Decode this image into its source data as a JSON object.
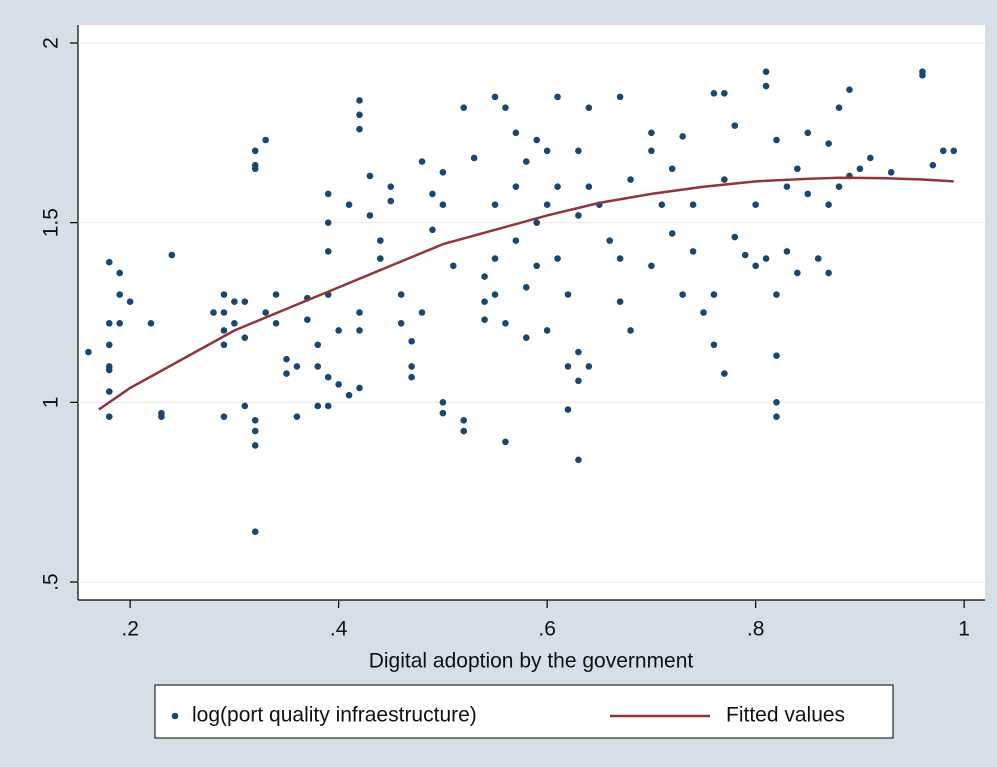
{
  "chart_data": {
    "type": "scatter",
    "x_label": "Digital adoption by the government",
    "xlim": [
      0.15,
      1.02
    ],
    "ylim": [
      0.45,
      2.05
    ],
    "xticks": [
      {
        "value": 0.2,
        "label": ".2"
      },
      {
        "value": 0.4,
        "label": ".4"
      },
      {
        "value": 0.6,
        "label": ".6"
      },
      {
        "value": 0.8,
        "label": ".8"
      },
      1
    ],
    "yticks": [
      {
        "value": 0.5,
        "label": ".5"
      },
      1,
      1.5,
      2
    ],
    "grid": true,
    "legend": "bottom",
    "series": [
      {
        "name": "log(port quality infraestructure)",
        "type": "scatter",
        "color": "#1a476f",
        "x": [
          0.16,
          0.18,
          0.18,
          0.18,
          0.18,
          0.18,
          0.18,
          0.18,
          0.19,
          0.19,
          0.19,
          0.2,
          0.22,
          0.23,
          0.23,
          0.24,
          0.28,
          0.29,
          0.29,
          0.29,
          0.29,
          0.29,
          0.3,
          0.3,
          0.31,
          0.31,
          0.31,
          0.32,
          0.32,
          0.32,
          0.32,
          0.32,
          0.32,
          0.32,
          0.33,
          0.33,
          0.34,
          0.34,
          0.35,
          0.35,
          0.36,
          0.36,
          0.37,
          0.37,
          0.38,
          0.38,
          0.38,
          0.39,
          0.39,
          0.39,
          0.39,
          0.39,
          0.39,
          0.4,
          0.4,
          0.41,
          0.41,
          0.42,
          0.42,
          0.42,
          0.42,
          0.42,
          0.42,
          0.43,
          0.43,
          0.44,
          0.44,
          0.45,
          0.45,
          0.46,
          0.46,
          0.47,
          0.47,
          0.47,
          0.48,
          0.48,
          0.49,
          0.49,
          0.5,
          0.5,
          0.5,
          0.5,
          0.51,
          0.52,
          0.52,
          0.52,
          0.53,
          0.54,
          0.54,
          0.54,
          0.55,
          0.55,
          0.55,
          0.55,
          0.56,
          0.56,
          0.56,
          0.57,
          0.57,
          0.57,
          0.58,
          0.58,
          0.58,
          0.59,
          0.59,
          0.59,
          0.6,
          0.6,
          0.6,
          0.61,
          0.61,
          0.61,
          0.62,
          0.62,
          0.62,
          0.63,
          0.63,
          0.63,
          0.63,
          0.63,
          0.64,
          0.64,
          0.64,
          0.65,
          0.66,
          0.67,
          0.67,
          0.67,
          0.68,
          0.68,
          0.7,
          0.7,
          0.7,
          0.71,
          0.72,
          0.72,
          0.73,
          0.73,
          0.74,
          0.74,
          0.75,
          0.76,
          0.76,
          0.76,
          0.77,
          0.77,
          0.77,
          0.78,
          0.78,
          0.79,
          0.8,
          0.8,
          0.81,
          0.81,
          0.81,
          0.82,
          0.82,
          0.82,
          0.82,
          0.82,
          0.83,
          0.83,
          0.84,
          0.84,
          0.85,
          0.85,
          0.86,
          0.87,
          0.87,
          0.87,
          0.88,
          0.88,
          0.89,
          0.89,
          0.9,
          0.91,
          0.93,
          0.96,
          0.96,
          0.97,
          0.98,
          0.99
        ],
        "values": [
          1.14,
          1.39,
          1.22,
          1.16,
          1.1,
          1.09,
          1.03,
          0.96,
          1.36,
          1.3,
          1.22,
          1.28,
          1.22,
          0.96,
          0.97,
          1.41,
          1.25,
          1.3,
          1.25,
          1.2,
          1.16,
          0.96,
          1.28,
          1.22,
          1.28,
          1.18,
          0.99,
          1.7,
          1.66,
          1.65,
          0.95,
          0.92,
          0.88,
          0.64,
          1.73,
          1.25,
          1.3,
          1.22,
          1.08,
          1.12,
          0.96,
          1.1,
          1.29,
          1.23,
          1.16,
          0.99,
          1.1,
          1.58,
          1.5,
          1.42,
          1.3,
          1.07,
          0.99,
          1.2,
          1.05,
          1.02,
          1.55,
          1.84,
          1.8,
          1.76,
          1.25,
          1.04,
          1.2,
          1.63,
          1.52,
          1.45,
          1.4,
          1.6,
          1.56,
          1.3,
          1.22,
          1.1,
          1.07,
          1.17,
          1.67,
          1.25,
          1.58,
          1.48,
          1.64,
          1.55,
          1.0,
          0.97,
          1.38,
          1.82,
          0.95,
          0.92,
          1.68,
          1.35,
          1.28,
          1.23,
          1.85,
          1.55,
          1.4,
          1.3,
          1.82,
          1.22,
          0.89,
          1.75,
          1.6,
          1.45,
          1.67,
          1.32,
          1.18,
          1.73,
          1.5,
          1.38,
          1.7,
          1.55,
          1.2,
          1.85,
          1.6,
          1.4,
          1.3,
          1.1,
          0.98,
          1.7,
          1.52,
          1.14,
          1.06,
          0.84,
          1.82,
          1.6,
          1.1,
          1.55,
          1.45,
          1.85,
          1.28,
          1.4,
          1.2,
          1.62,
          1.75,
          1.7,
          1.38,
          1.55,
          1.65,
          1.47,
          1.74,
          1.3,
          1.55,
          1.42,
          1.25,
          1.86,
          1.3,
          1.16,
          1.86,
          1.62,
          1.08,
          1.77,
          1.46,
          1.41,
          1.55,
          1.38,
          1.92,
          1.88,
          1.4,
          1.73,
          1.3,
          1.13,
          1.0,
          0.96,
          1.6,
          1.42,
          1.65,
          1.36,
          1.75,
          1.58,
          1.4,
          1.72,
          1.55,
          1.36,
          1.82,
          1.6,
          1.87,
          1.63,
          1.65,
          1.68,
          1.64,
          1.92,
          1.91,
          1.66,
          1.7,
          1.7
        ]
      },
      {
        "name": "Fitted values",
        "type": "line",
        "color": "#90353b",
        "x": [
          0.17,
          0.2,
          0.25,
          0.3,
          0.35,
          0.4,
          0.45,
          0.5,
          0.55,
          0.6,
          0.65,
          0.7,
          0.75,
          0.8,
          0.85,
          0.88,
          0.92,
          0.96,
          0.99
        ],
        "values": [
          0.98,
          1.04,
          1.12,
          1.2,
          1.26,
          1.32,
          1.38,
          1.44,
          1.48,
          1.52,
          1.555,
          1.58,
          1.6,
          1.615,
          1.622,
          1.625,
          1.624,
          1.62,
          1.615
        ]
      }
    ]
  }
}
